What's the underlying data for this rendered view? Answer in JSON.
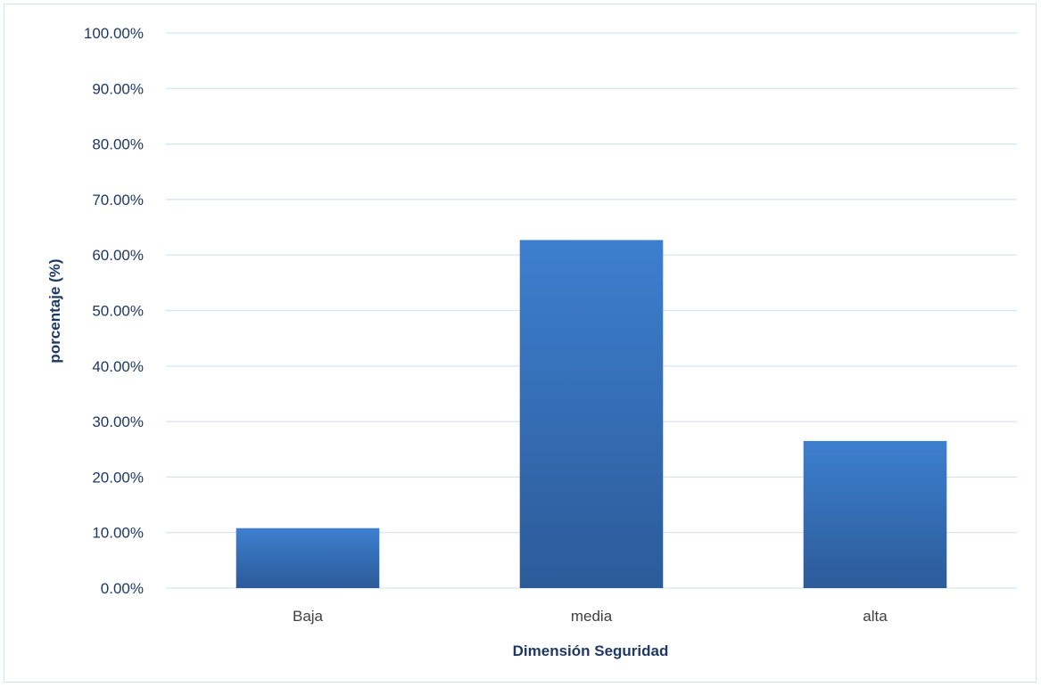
{
  "chart_data": {
    "type": "bar",
    "title": "",
    "xlabel": "Dimensión Seguridad",
    "ylabel": "porcentaje (%)",
    "categories": [
      "Baja",
      "media",
      "alta"
    ],
    "values": [
      10.8,
      62.7,
      26.5
    ],
    "ylim": [
      0,
      100
    ],
    "y_tick_step": 10,
    "y_tick_labels": [
      "0.00%",
      "10.00%",
      "20.00%",
      "30.00%",
      "40.00%",
      "50.00%",
      "60.00%",
      "70.00%",
      "80.00%",
      "90.00%",
      "100.00%"
    ],
    "grid": true,
    "legend": "none",
    "colors": {
      "bar_top": "#3d7fcf",
      "bar_bottom": "#2c5b99",
      "grid": "#d6e3f0",
      "text": "#1f3864"
    }
  }
}
